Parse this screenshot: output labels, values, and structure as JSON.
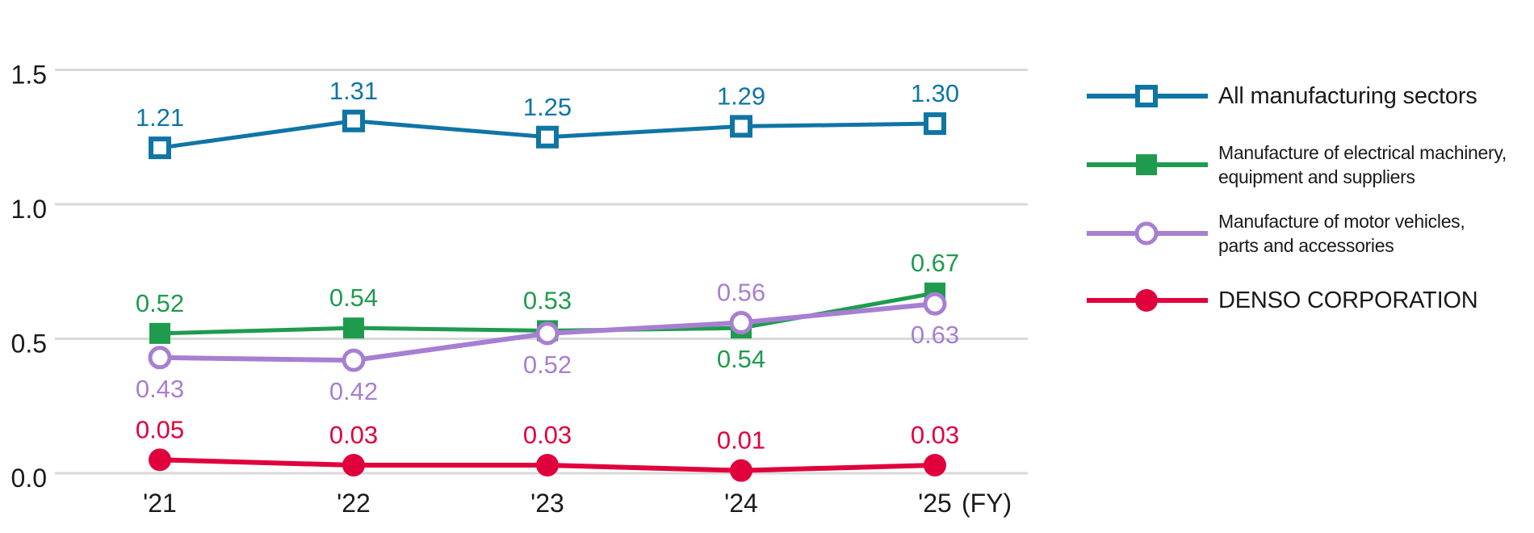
{
  "chart_data": {
    "type": "line",
    "title": "",
    "x_categories": [
      "'21",
      "'22",
      "'23",
      "'24",
      "'25"
    ],
    "x_axis_suffix": "(FY)",
    "yticks": [
      0.0,
      0.5,
      1.0,
      1.5
    ],
    "ylim": [
      0,
      1.65
    ],
    "grid": "horizontal-only",
    "legend_position": "right",
    "colors": {
      "grid": "#d9d9d9",
      "axis_text": "#1a1a1a"
    },
    "series": [
      {
        "name": "All manufacturing sectors",
        "legend_lines": [
          "All manufacturing sectors"
        ],
        "color": "#0f75a5",
        "marker": "open-square",
        "values": [
          1.21,
          1.31,
          1.25,
          1.29,
          1.3
        ],
        "labels": [
          "1.21",
          "1.31",
          "1.25",
          "1.29",
          "1.30"
        ],
        "label_pos": [
          "above",
          "above",
          "above",
          "above",
          "above"
        ]
      },
      {
        "name": "Manufacture of electrical machinery, equipment and suppliers",
        "legend_lines": [
          "Manufacture of electrical machinery,",
          "equipment and suppliers"
        ],
        "color": "#1f9b4e",
        "marker": "filled-square",
        "values": [
          0.52,
          0.54,
          0.53,
          0.54,
          0.67
        ],
        "labels": [
          "0.52",
          "0.54",
          "0.53",
          "0.54",
          "0.67"
        ],
        "label_pos": [
          "above",
          "above",
          "above",
          "below",
          "above"
        ]
      },
      {
        "name": "Manufacture of motor vehicles, parts and accessories",
        "legend_lines": [
          "Manufacture of motor vehicles,",
          "parts and accessories"
        ],
        "color": "#a77fd2",
        "marker": "open-circle",
        "values": [
          0.43,
          0.42,
          0.52,
          0.56,
          0.63
        ],
        "labels": [
          "0.43",
          "0.42",
          "0.52",
          "0.56",
          "0.63"
        ],
        "label_pos": [
          "below",
          "below",
          "below",
          "above",
          "below"
        ]
      },
      {
        "name": "DENSO CORPORATION",
        "legend_lines": [
          "DENSO CORPORATION"
        ],
        "color": "#e0003c",
        "marker": "filled-circle",
        "values": [
          0.05,
          0.03,
          0.03,
          0.01,
          0.03
        ],
        "labels": [
          "0.05",
          "0.03",
          "0.03",
          "0.01",
          "0.03"
        ],
        "label_pos": [
          "above",
          "above",
          "above",
          "above",
          "above"
        ]
      }
    ]
  }
}
